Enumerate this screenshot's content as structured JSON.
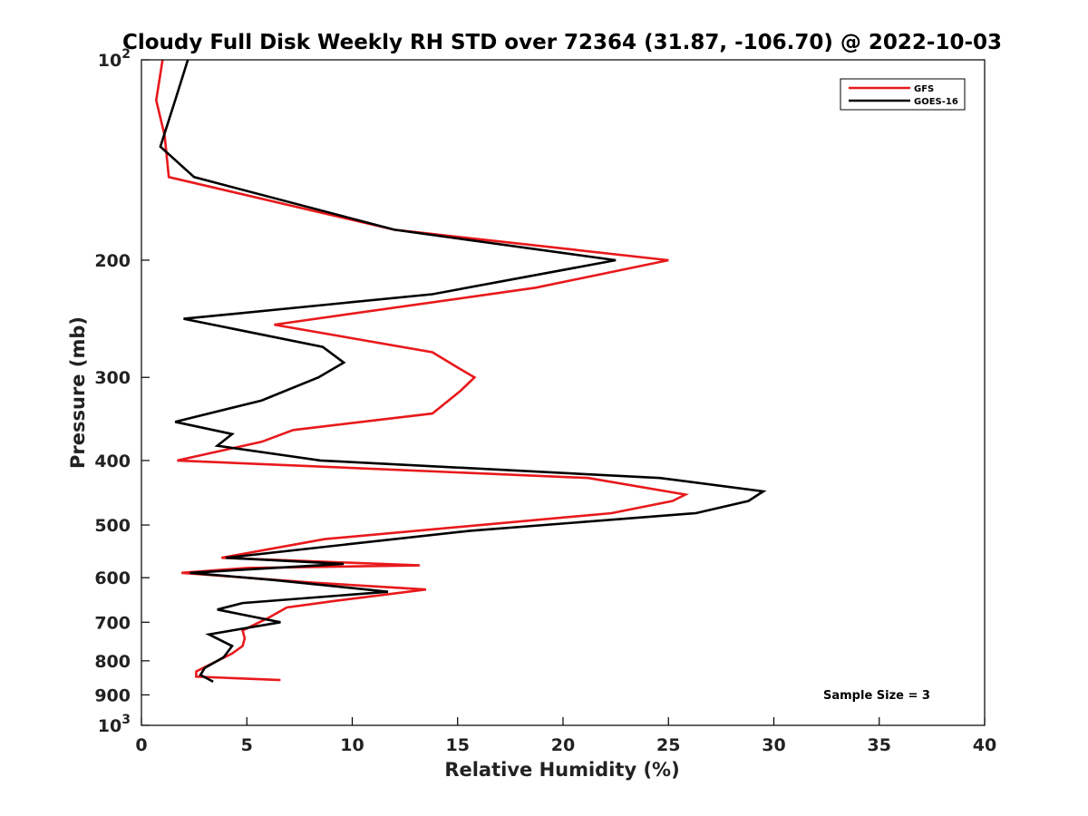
{
  "chart_data": {
    "type": "line",
    "title": "Cloudy Full Disk Weekly RH STD over 72364 (31.87, -106.70) @ 2022-10-03",
    "xlabel": "Relative Humidity (%)",
    "ylabel": "Pressure (mb)",
    "xlim": [
      0,
      40
    ],
    "ylim": [
      100,
      1000
    ],
    "y_scale": "log",
    "y_reversed": true,
    "x_ticks": [
      {
        "value": 0,
        "label": "0"
      },
      {
        "value": 5,
        "label": "5"
      },
      {
        "value": 10,
        "label": "10"
      },
      {
        "value": 15,
        "label": "15"
      },
      {
        "value": 20,
        "label": "20"
      },
      {
        "value": 25,
        "label": "25"
      },
      {
        "value": 30,
        "label": "30"
      },
      {
        "value": 35,
        "label": "35"
      },
      {
        "value": 40,
        "label": "40"
      }
    ],
    "y_ticks": [
      {
        "value": 100,
        "base": "10",
        "exp": "2"
      },
      {
        "value": 200,
        "label": "200"
      },
      {
        "value": 300,
        "label": "300"
      },
      {
        "value": 400,
        "label": "400"
      },
      {
        "value": 500,
        "label": "500"
      },
      {
        "value": 600,
        "label": "600"
      },
      {
        "value": 700,
        "label": "700"
      },
      {
        "value": 800,
        "label": "800"
      },
      {
        "value": 900,
        "label": "900"
      },
      {
        "value": 1000,
        "base": "10",
        "exp": "3"
      }
    ],
    "grid": false,
    "legend_position": "top-right",
    "series": [
      {
        "name": "GFS",
        "color": "#e8191c",
        "points": [
          [
            1.0,
            100
          ],
          [
            0.7,
            115
          ],
          [
            1.1,
            130
          ],
          [
            1.3,
            150
          ],
          [
            12,
            180
          ],
          [
            25.0,
            200
          ],
          [
            18.7,
            220
          ],
          [
            6.3,
            250
          ],
          [
            13.8,
            275
          ],
          [
            15.0,
            290
          ],
          [
            15.8,
            300
          ],
          [
            15.1,
            315
          ],
          [
            13.8,
            340
          ],
          [
            7.2,
            360
          ],
          [
            5.7,
            375
          ],
          [
            1.7,
            400
          ],
          [
            21.2,
            425
          ],
          [
            25.8,
            450
          ],
          [
            25.2,
            460
          ],
          [
            22.3,
            480
          ],
          [
            8.7,
            525
          ],
          [
            3.8,
            560
          ],
          [
            13.2,
            575
          ],
          [
            5.0,
            580
          ],
          [
            1.9,
            590
          ],
          [
            8.0,
            610
          ],
          [
            13.5,
            625
          ],
          [
            9.2,
            650
          ],
          [
            6.9,
            665
          ],
          [
            6.0,
            690
          ],
          [
            4.8,
            720
          ],
          [
            4.9,
            740
          ],
          [
            4.8,
            760
          ],
          [
            4.3,
            780
          ],
          [
            2.6,
            830
          ],
          [
            2.6,
            845
          ],
          [
            6.6,
            855
          ]
        ]
      },
      {
        "name": "GOES-16",
        "color": "#000000",
        "points": [
          [
            2.2,
            100
          ],
          [
            1.6,
            115
          ],
          [
            0.9,
            135
          ],
          [
            2.5,
            150
          ],
          [
            12,
            180
          ],
          [
            22.5,
            200
          ],
          [
            13.8,
            225
          ],
          [
            2.0,
            245
          ],
          [
            8.6,
            270
          ],
          [
            9.6,
            285
          ],
          [
            8.4,
            300
          ],
          [
            5.7,
            325
          ],
          [
            1.6,
            350
          ],
          [
            4.3,
            365
          ],
          [
            3.6,
            380
          ],
          [
            8.5,
            400
          ],
          [
            24.6,
            425
          ],
          [
            29.5,
            445
          ],
          [
            28.8,
            460
          ],
          [
            26.3,
            480
          ],
          [
            15.6,
            510
          ],
          [
            4.0,
            560
          ],
          [
            9.6,
            572
          ],
          [
            2.3,
            590
          ],
          [
            6.3,
            605
          ],
          [
            11.7,
            630
          ],
          [
            4.8,
            655
          ],
          [
            3.6,
            670
          ],
          [
            6.6,
            700
          ],
          [
            3.2,
            730
          ],
          [
            4.3,
            760
          ],
          [
            3.9,
            790
          ],
          [
            3.0,
            820
          ],
          [
            2.8,
            840
          ],
          [
            3.4,
            860
          ]
        ]
      }
    ],
    "annotations": [
      "Sample Size = 3"
    ]
  }
}
